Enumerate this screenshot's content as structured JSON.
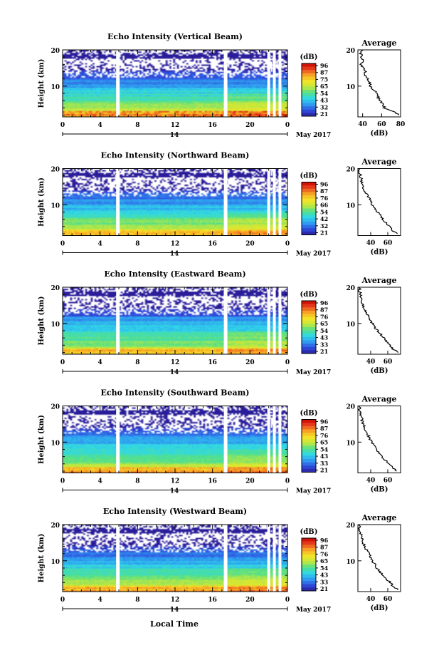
{
  "figure": {
    "x_axis_title": "Local Time",
    "date_label": "May 2017",
    "day_label": "14",
    "y_axis_title": "Height (km)",
    "colorbar_unit": "(dB)",
    "average_title": "Average",
    "average_xlabel": "(dB)"
  },
  "colors": {
    "colormap": [
      "#2a1d9a",
      "#2f4fe0",
      "#2f9cf0",
      "#30d8e8",
      "#52e08a",
      "#c4e83c",
      "#f6e426",
      "#f6a326",
      "#e8421e",
      "#c80000"
    ],
    "background": "#ffffff",
    "gap": "#ffffff"
  },
  "chart_data": [
    {
      "type": "heatmap",
      "title": "Echo Intensity (Vertical Beam)",
      "xlabel": "Local Time",
      "ylabel": "Height (km)",
      "x_ticks": [
        "0",
        "4",
        "8",
        "12",
        "16",
        "20",
        "0"
      ],
      "y_ticks": [
        "20",
        "10"
      ],
      "xlim": [
        0,
        24
      ],
      "ylim": [
        1.5,
        20
      ],
      "colorbar_ticks": [
        "96",
        "87",
        "75",
        "65",
        "54",
        "43",
        "32",
        "21"
      ],
      "data_gaps_hours": [
        5.9,
        17.4,
        22.0,
        22.6,
        23.2
      ],
      "profile": {
        "xlabel": "(dB)",
        "x_ticks": [
          "40",
          "60",
          "80"
        ],
        "xlim": [
          35,
          80
        ],
        "y_ticks": [
          "20",
          "10"
        ],
        "height_km": [
          2,
          3,
          4,
          5,
          6,
          7,
          8,
          9,
          10,
          11,
          12,
          13,
          14,
          15,
          16,
          17,
          18,
          19,
          20
        ],
        "db": [
          79,
          72,
          63,
          62,
          58,
          56,
          55,
          51,
          48,
          47,
          45,
          43,
          43,
          42,
          38,
          41,
          39,
          38,
          40
        ]
      }
    },
    {
      "type": "heatmap",
      "title": "Echo Intensity (Northward Beam)",
      "xlabel": "Local Time",
      "ylabel": "Height (km)",
      "x_ticks": [
        "0",
        "4",
        "8",
        "12",
        "16",
        "20",
        "0"
      ],
      "y_ticks": [
        "20",
        "10"
      ],
      "xlim": [
        0,
        24
      ],
      "ylim": [
        1.5,
        20
      ],
      "colorbar_ticks": [
        "96",
        "87",
        "76",
        "66",
        "54",
        "42",
        "32",
        "21"
      ],
      "data_gaps_hours": [
        5.9,
        17.4,
        22.0,
        22.6,
        23.2
      ],
      "profile": {
        "xlabel": "(dB)",
        "x_ticks": [
          "40",
          "60"
        ],
        "xlim": [
          25,
          75
        ],
        "y_ticks": [
          "20",
          "10"
        ],
        "height_km": [
          2,
          3,
          4,
          5,
          6,
          7,
          8,
          9,
          10,
          11,
          12,
          13,
          14,
          15,
          16,
          17,
          18,
          19,
          20
        ],
        "db": [
          72,
          65,
          62,
          58,
          54,
          52,
          48,
          45,
          42,
          40,
          38,
          35,
          33,
          31,
          30,
          29,
          28,
          27,
          27
        ]
      }
    },
    {
      "type": "heatmap",
      "title": "Echo Intensity (Eastward Beam)",
      "xlabel": "Local Time",
      "ylabel": "Height (km)",
      "x_ticks": [
        "0",
        "4",
        "8",
        "12",
        "16",
        "20",
        "0"
      ],
      "y_ticks": [
        "20",
        "10"
      ],
      "xlim": [
        0,
        24
      ],
      "ylim": [
        1.5,
        20
      ],
      "colorbar_ticks": [
        "96",
        "87",
        "76",
        "65",
        "54",
        "43",
        "33",
        "21"
      ],
      "data_gaps_hours": [
        5.9,
        17.4,
        22.0,
        22.6,
        23.2
      ],
      "profile": {
        "xlabel": "(dB)",
        "x_ticks": [
          "40",
          "60"
        ],
        "xlim": [
          25,
          75
        ],
        "y_ticks": [
          "20",
          "10"
        ],
        "height_km": [
          2,
          3,
          4,
          5,
          6,
          7,
          8,
          9,
          10,
          11,
          12,
          13,
          14,
          15,
          16,
          17,
          18,
          19,
          20
        ],
        "db": [
          73,
          66,
          63,
          59,
          55,
          52,
          48,
          45,
          42,
          40,
          38,
          35,
          33,
          31,
          30,
          29,
          28,
          27,
          27
        ]
      }
    },
    {
      "type": "heatmap",
      "title": "Echo Intensity (Southward Beam)",
      "xlabel": "Local Time",
      "ylabel": "Height (km)",
      "x_ticks": [
        "0",
        "4",
        "8",
        "12",
        "16",
        "20",
        "0"
      ],
      "y_ticks": [
        "20",
        "10"
      ],
      "xlim": [
        0,
        24
      ],
      "ylim": [
        1.5,
        20
      ],
      "colorbar_ticks": [
        "96",
        "87",
        "76",
        "65",
        "54",
        "43",
        "33",
        "21"
      ],
      "data_gaps_hours": [
        5.9,
        17.4,
        22.0,
        22.6,
        23.2
      ],
      "profile": {
        "xlabel": "(dB)",
        "x_ticks": [
          "40",
          "60"
        ],
        "xlim": [
          25,
          75
        ],
        "y_ticks": [
          "20",
          "10"
        ],
        "height_km": [
          2,
          3,
          4,
          5,
          6,
          7,
          8,
          9,
          10,
          11,
          12,
          13,
          14,
          15,
          16,
          17,
          18,
          19,
          20
        ],
        "db": [
          71,
          65,
          62,
          57,
          53,
          50,
          47,
          44,
          41,
          39,
          37,
          35,
          33,
          31,
          30,
          29,
          28,
          27,
          27
        ]
      }
    },
    {
      "type": "heatmap",
      "title": "Echo Intensity (Westward Beam)",
      "xlabel": "Local Time",
      "ylabel": "Height (km)",
      "x_ticks": [
        "0",
        "4",
        "8",
        "12",
        "16",
        "20",
        "0"
      ],
      "y_ticks": [
        "20",
        "10"
      ],
      "xlim": [
        0,
        24
      ],
      "ylim": [
        1.5,
        20
      ],
      "colorbar_ticks": [
        "96",
        "87",
        "76",
        "65",
        "54",
        "43",
        "33",
        "21"
      ],
      "data_gaps_hours": [
        5.9,
        17.4,
        22.0,
        22.6,
        23.2
      ],
      "profile": {
        "xlabel": "(dB)",
        "x_ticks": [
          "40",
          "60"
        ],
        "xlim": [
          25,
          75
        ],
        "y_ticks": [
          "20",
          "10"
        ],
        "height_km": [
          2,
          3,
          4,
          5,
          6,
          7,
          8,
          9,
          10,
          11,
          12,
          13,
          14,
          15,
          16,
          17,
          18,
          19,
          20
        ],
        "db": [
          72,
          66,
          63,
          58,
          54,
          51,
          47,
          45,
          42,
          40,
          38,
          35,
          33,
          31,
          30,
          29,
          28,
          27,
          27
        ]
      }
    }
  ]
}
